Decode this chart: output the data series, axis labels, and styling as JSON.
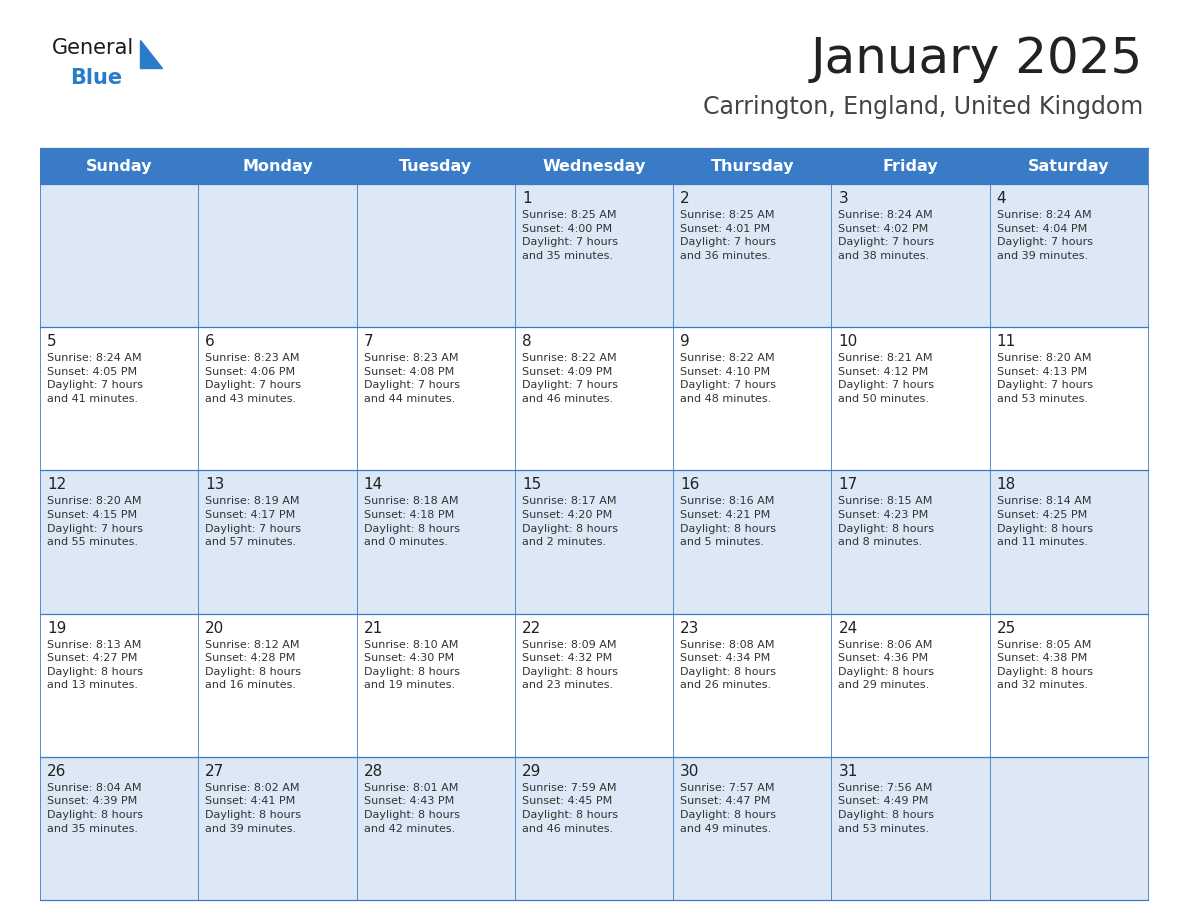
{
  "title": "January 2025",
  "subtitle": "Carrington, England, United Kingdom",
  "days_of_week": [
    "Sunday",
    "Monday",
    "Tuesday",
    "Wednesday",
    "Thursday",
    "Friday",
    "Saturday"
  ],
  "header_bg": "#3a7bc8",
  "header_text": "#ffffff",
  "row_bg_odd": "#dce8f5",
  "row_bg_even": "#ffffff",
  "cell_border": "#3a7bc8",
  "day_number_color": "#222222",
  "text_color": "#333333",
  "title_color": "#222222",
  "subtitle_color": "#444444",
  "logo_general_color": "#1a1a1a",
  "logo_blue_color": "#2a7bc8",
  "calendar": [
    [
      {
        "day": null,
        "info": null
      },
      {
        "day": null,
        "info": null
      },
      {
        "day": null,
        "info": null
      },
      {
        "day": 1,
        "info": "Sunrise: 8:25 AM\nSunset: 4:00 PM\nDaylight: 7 hours\nand 35 minutes."
      },
      {
        "day": 2,
        "info": "Sunrise: 8:25 AM\nSunset: 4:01 PM\nDaylight: 7 hours\nand 36 minutes."
      },
      {
        "day": 3,
        "info": "Sunrise: 8:24 AM\nSunset: 4:02 PM\nDaylight: 7 hours\nand 38 minutes."
      },
      {
        "day": 4,
        "info": "Sunrise: 8:24 AM\nSunset: 4:04 PM\nDaylight: 7 hours\nand 39 minutes."
      }
    ],
    [
      {
        "day": 5,
        "info": "Sunrise: 8:24 AM\nSunset: 4:05 PM\nDaylight: 7 hours\nand 41 minutes."
      },
      {
        "day": 6,
        "info": "Sunrise: 8:23 AM\nSunset: 4:06 PM\nDaylight: 7 hours\nand 43 minutes."
      },
      {
        "day": 7,
        "info": "Sunrise: 8:23 AM\nSunset: 4:08 PM\nDaylight: 7 hours\nand 44 minutes."
      },
      {
        "day": 8,
        "info": "Sunrise: 8:22 AM\nSunset: 4:09 PM\nDaylight: 7 hours\nand 46 minutes."
      },
      {
        "day": 9,
        "info": "Sunrise: 8:22 AM\nSunset: 4:10 PM\nDaylight: 7 hours\nand 48 minutes."
      },
      {
        "day": 10,
        "info": "Sunrise: 8:21 AM\nSunset: 4:12 PM\nDaylight: 7 hours\nand 50 minutes."
      },
      {
        "day": 11,
        "info": "Sunrise: 8:20 AM\nSunset: 4:13 PM\nDaylight: 7 hours\nand 53 minutes."
      }
    ],
    [
      {
        "day": 12,
        "info": "Sunrise: 8:20 AM\nSunset: 4:15 PM\nDaylight: 7 hours\nand 55 minutes."
      },
      {
        "day": 13,
        "info": "Sunrise: 8:19 AM\nSunset: 4:17 PM\nDaylight: 7 hours\nand 57 minutes."
      },
      {
        "day": 14,
        "info": "Sunrise: 8:18 AM\nSunset: 4:18 PM\nDaylight: 8 hours\nand 0 minutes."
      },
      {
        "day": 15,
        "info": "Sunrise: 8:17 AM\nSunset: 4:20 PM\nDaylight: 8 hours\nand 2 minutes."
      },
      {
        "day": 16,
        "info": "Sunrise: 8:16 AM\nSunset: 4:21 PM\nDaylight: 8 hours\nand 5 minutes."
      },
      {
        "day": 17,
        "info": "Sunrise: 8:15 AM\nSunset: 4:23 PM\nDaylight: 8 hours\nand 8 minutes."
      },
      {
        "day": 18,
        "info": "Sunrise: 8:14 AM\nSunset: 4:25 PM\nDaylight: 8 hours\nand 11 minutes."
      }
    ],
    [
      {
        "day": 19,
        "info": "Sunrise: 8:13 AM\nSunset: 4:27 PM\nDaylight: 8 hours\nand 13 minutes."
      },
      {
        "day": 20,
        "info": "Sunrise: 8:12 AM\nSunset: 4:28 PM\nDaylight: 8 hours\nand 16 minutes."
      },
      {
        "day": 21,
        "info": "Sunrise: 8:10 AM\nSunset: 4:30 PM\nDaylight: 8 hours\nand 19 minutes."
      },
      {
        "day": 22,
        "info": "Sunrise: 8:09 AM\nSunset: 4:32 PM\nDaylight: 8 hours\nand 23 minutes."
      },
      {
        "day": 23,
        "info": "Sunrise: 8:08 AM\nSunset: 4:34 PM\nDaylight: 8 hours\nand 26 minutes."
      },
      {
        "day": 24,
        "info": "Sunrise: 8:06 AM\nSunset: 4:36 PM\nDaylight: 8 hours\nand 29 minutes."
      },
      {
        "day": 25,
        "info": "Sunrise: 8:05 AM\nSunset: 4:38 PM\nDaylight: 8 hours\nand 32 minutes."
      }
    ],
    [
      {
        "day": 26,
        "info": "Sunrise: 8:04 AM\nSunset: 4:39 PM\nDaylight: 8 hours\nand 35 minutes."
      },
      {
        "day": 27,
        "info": "Sunrise: 8:02 AM\nSunset: 4:41 PM\nDaylight: 8 hours\nand 39 minutes."
      },
      {
        "day": 28,
        "info": "Sunrise: 8:01 AM\nSunset: 4:43 PM\nDaylight: 8 hours\nand 42 minutes."
      },
      {
        "day": 29,
        "info": "Sunrise: 7:59 AM\nSunset: 4:45 PM\nDaylight: 8 hours\nand 46 minutes."
      },
      {
        "day": 30,
        "info": "Sunrise: 7:57 AM\nSunset: 4:47 PM\nDaylight: 8 hours\nand 49 minutes."
      },
      {
        "day": 31,
        "info": "Sunrise: 7:56 AM\nSunset: 4:49 PM\nDaylight: 8 hours\nand 53 minutes."
      },
      {
        "day": null,
        "info": null
      }
    ]
  ]
}
